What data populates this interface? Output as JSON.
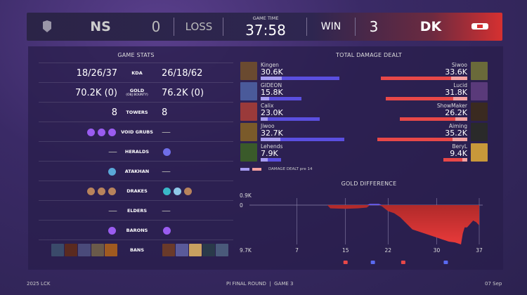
{
  "header": {
    "left_team": "NS",
    "left_score": "0",
    "left_result": "LOSS",
    "time_label": "GAME TIME",
    "time": "37:58",
    "right_result": "WIN",
    "right_score": "3",
    "right_team": "DK"
  },
  "stats": {
    "title": "GAME STATS",
    "rows": [
      {
        "label": "KDA",
        "left": "18/26/37",
        "right": "26/18/62"
      },
      {
        "label": "GOLD",
        "sublabel": "(OBJ BOUNTY)",
        "left": "70.2K (0)",
        "right": "76.2K (0)"
      },
      {
        "label": "TOWERS",
        "left": "8",
        "right": "8"
      },
      {
        "label": "VOID GRUBS",
        "left_icons": [
          "grub-icon",
          "grub-icon",
          "grub-icon"
        ],
        "right": "—"
      },
      {
        "label": "HERALDS",
        "left": "—",
        "right_icons": [
          "herald-icon"
        ]
      },
      {
        "label": "ATAKHAN",
        "left_icons": [
          "atakhan-icon"
        ],
        "right": "—"
      },
      {
        "label": "DRAKES",
        "left_icons": [
          "mountain-drake-icon",
          "mountain-drake-icon",
          "mountain-drake-icon"
        ],
        "right_icons": [
          "hextech-drake-icon",
          "cloud-drake-icon",
          "mountain-drake-icon"
        ]
      },
      {
        "label": "ELDERS",
        "left": "—",
        "right": "—"
      },
      {
        "label": "BARONS",
        "left_icons": [
          "baron-icon"
        ],
        "right_icons": [
          "baron-icon"
        ]
      },
      {
        "label": "BANS",
        "left_icons": [
          "ban",
          "ban",
          "ban",
          "ban",
          "ban"
        ],
        "right_icons": [
          "ban",
          "ban",
          "ban",
          "ban",
          "ban"
        ]
      }
    ]
  },
  "damage": {
    "title": "TOTAL DAMAGE DEALT",
    "legend": "DAMAGE DEALT pre 14",
    "blue_color": "#5b4fe0",
    "red_color": "#e84848",
    "left": [
      {
        "name": "Kingen",
        "value": "30.6K",
        "total": 30.6,
        "pre14": 8.2
      },
      {
        "name": "GIDEON",
        "value": "15.8K",
        "total": 15.8,
        "pre14": 3.3
      },
      {
        "name": "Calix",
        "value": "23.0K",
        "total": 23.0,
        "pre14": 2.7
      },
      {
        "name": "Jiwoo",
        "value": "32.7K",
        "total": 32.7,
        "pre14": 7.7
      },
      {
        "name": "Lehends",
        "value": "7.9K",
        "total": 7.9,
        "pre14": 2.7
      }
    ],
    "right": [
      {
        "name": "Siwoo",
        "value": "33.6K",
        "total": 33.6,
        "pre14": 6.4
      },
      {
        "name": "Lucid",
        "value": "31.8K",
        "total": 31.8,
        "pre14": 5.5
      },
      {
        "name": "ShowMaker",
        "value": "26.2K",
        "total": 26.2,
        "pre14": 4.7
      },
      {
        "name": "Aiming",
        "value": "35.2K",
        "total": 35.2,
        "pre14": 5.8
      },
      {
        "name": "BeryL",
        "value": "9.4K",
        "total": 9.4,
        "pre14": 1.9
      }
    ]
  },
  "chart_data": {
    "type": "area",
    "title": "GOLD DIFFERENCE",
    "ymax_label": "0.9K",
    "zero_label": "0",
    "ymin_label": "9.7K",
    "ylim": [
      -9.7,
      0.9
    ],
    "xlim": [
      0,
      37
    ],
    "x_ticks": [
      "7",
      "15",
      "22",
      "30",
      "37"
    ],
    "x": [
      0,
      12,
      12.5,
      15,
      17,
      18.5,
      19,
      20.5,
      21,
      22,
      23,
      24,
      25,
      26,
      27,
      28,
      29,
      30,
      31,
      32,
      33,
      34,
      34.3,
      34.6,
      35,
      36,
      36.5,
      37
    ],
    "y": [
      0,
      0,
      -0.8,
      -0.9,
      -0.8,
      -0.6,
      0.3,
      0.3,
      -0.3,
      -1.5,
      -2,
      -3,
      -4.5,
      -6,
      -6.5,
      -7,
      -7.5,
      -8,
      -8.5,
      -9,
      -9.2,
      -9.7,
      -7,
      -5.5,
      -5.5,
      -3.8,
      -4.2,
      -5
    ],
    "events": [
      {
        "minute": 15,
        "team": "red"
      },
      {
        "minute": 19.5,
        "team": "blue"
      },
      {
        "minute": 24.5,
        "team": "red"
      },
      {
        "minute": 31.5,
        "team": "blue"
      }
    ]
  },
  "footer": {
    "left": "2025 LCK",
    "center": "PI FINAL ROUND",
    "center2": "GAME 3",
    "right": "07 Sep"
  }
}
